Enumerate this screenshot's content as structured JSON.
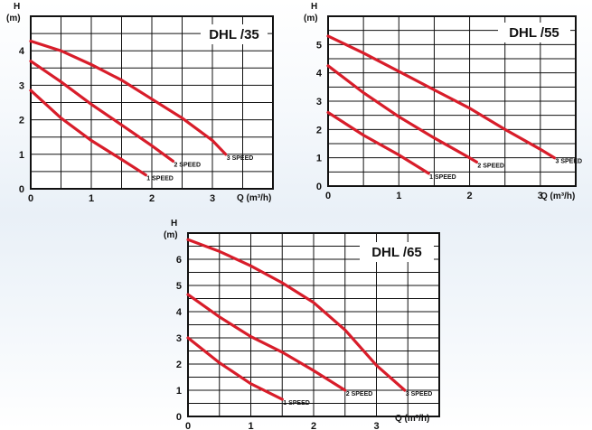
{
  "chart_data": [
    {
      "type": "line",
      "title": "DHL /35",
      "ylabel_top": "H",
      "ylabel_unit": "(m)",
      "xlabel": "Q (m³/h)",
      "xlim": [
        0,
        4
      ],
      "ylim": [
        0,
        5
      ],
      "x_ticks": [
        "0",
        "1",
        "2",
        "3"
      ],
      "y_ticks": [
        "0",
        "1",
        "2",
        "3",
        "4"
      ],
      "grid": true,
      "series": [
        {
          "name": "1 SPEED",
          "points": [
            [
              0,
              2.85
            ],
            [
              0.5,
              2.05
            ],
            [
              1.0,
              1.4
            ],
            [
              1.5,
              0.85
            ],
            [
              1.9,
              0.4
            ]
          ]
        },
        {
          "name": "2 SPEED",
          "points": [
            [
              0,
              3.7
            ],
            [
              0.5,
              3.1
            ],
            [
              1.0,
              2.45
            ],
            [
              1.5,
              1.85
            ],
            [
              2.0,
              1.25
            ],
            [
              2.35,
              0.8
            ]
          ]
        },
        {
          "name": "3 SPEED",
          "points": [
            [
              0,
              4.28
            ],
            [
              0.5,
              4.0
            ],
            [
              1.0,
              3.6
            ],
            [
              1.5,
              3.15
            ],
            [
              2.0,
              2.6
            ],
            [
              2.5,
              2.05
            ],
            [
              3.0,
              1.4
            ],
            [
              3.22,
              1.0
            ]
          ]
        }
      ]
    },
    {
      "type": "line",
      "title": "DHL /55",
      "ylabel_top": "H",
      "ylabel_unit": "(m)",
      "xlabel": "Q (m³/h)",
      "xlim": [
        0,
        3.5
      ],
      "ylim": [
        0,
        6
      ],
      "x_ticks": [
        "0",
        "1",
        "2",
        "3"
      ],
      "y_ticks": [
        "0",
        "1",
        "2",
        "3",
        "4",
        "5"
      ],
      "grid": true,
      "series": [
        {
          "name": "1 SPEED",
          "points": [
            [
              0,
              2.6
            ],
            [
              0.5,
              1.8
            ],
            [
              1.0,
              1.1
            ],
            [
              1.42,
              0.45
            ]
          ]
        },
        {
          "name": "2 SPEED",
          "points": [
            [
              0,
              4.25
            ],
            [
              0.5,
              3.3
            ],
            [
              1.0,
              2.45
            ],
            [
              1.5,
              1.7
            ],
            [
              2.0,
              1.0
            ],
            [
              2.1,
              0.85
            ]
          ]
        },
        {
          "name": "3 SPEED",
          "points": [
            [
              0,
              5.3
            ],
            [
              0.5,
              4.7
            ],
            [
              1.0,
              4.05
            ],
            [
              1.5,
              3.4
            ],
            [
              2.0,
              2.75
            ],
            [
              2.5,
              2.0
            ],
            [
              3.0,
              1.3
            ],
            [
              3.2,
              1.0
            ]
          ]
        }
      ]
    },
    {
      "type": "line",
      "title": "DHL /65",
      "ylabel_top": "H",
      "ylabel_unit": "(m)",
      "xlabel": "Q (m³/h)",
      "xlim": [
        0,
        4
      ],
      "ylim": [
        0,
        7
      ],
      "x_ticks": [
        "0",
        "1",
        "2",
        "3"
      ],
      "y_ticks": [
        "0",
        "1",
        "2",
        "3",
        "4",
        "5",
        "6"
      ],
      "grid": true,
      "series": [
        {
          "name": "1 SPEED",
          "points": [
            [
              0,
              3.0
            ],
            [
              0.5,
              2.05
            ],
            [
              1.0,
              1.25
            ],
            [
              1.5,
              0.65
            ]
          ]
        },
        {
          "name": "2 SPEED",
          "points": [
            [
              0,
              4.65
            ],
            [
              0.5,
              3.8
            ],
            [
              1.0,
              3.05
            ],
            [
              1.5,
              2.45
            ],
            [
              2.0,
              1.75
            ],
            [
              2.5,
              1.0
            ]
          ]
        },
        {
          "name": "3 SPEED",
          "points": [
            [
              0,
              6.75
            ],
            [
              0.5,
              6.3
            ],
            [
              1.0,
              5.75
            ],
            [
              1.5,
              5.1
            ],
            [
              2.0,
              4.35
            ],
            [
              2.5,
              3.3
            ],
            [
              3.0,
              1.95
            ],
            [
              3.45,
              1.0
            ]
          ]
        }
      ]
    }
  ]
}
